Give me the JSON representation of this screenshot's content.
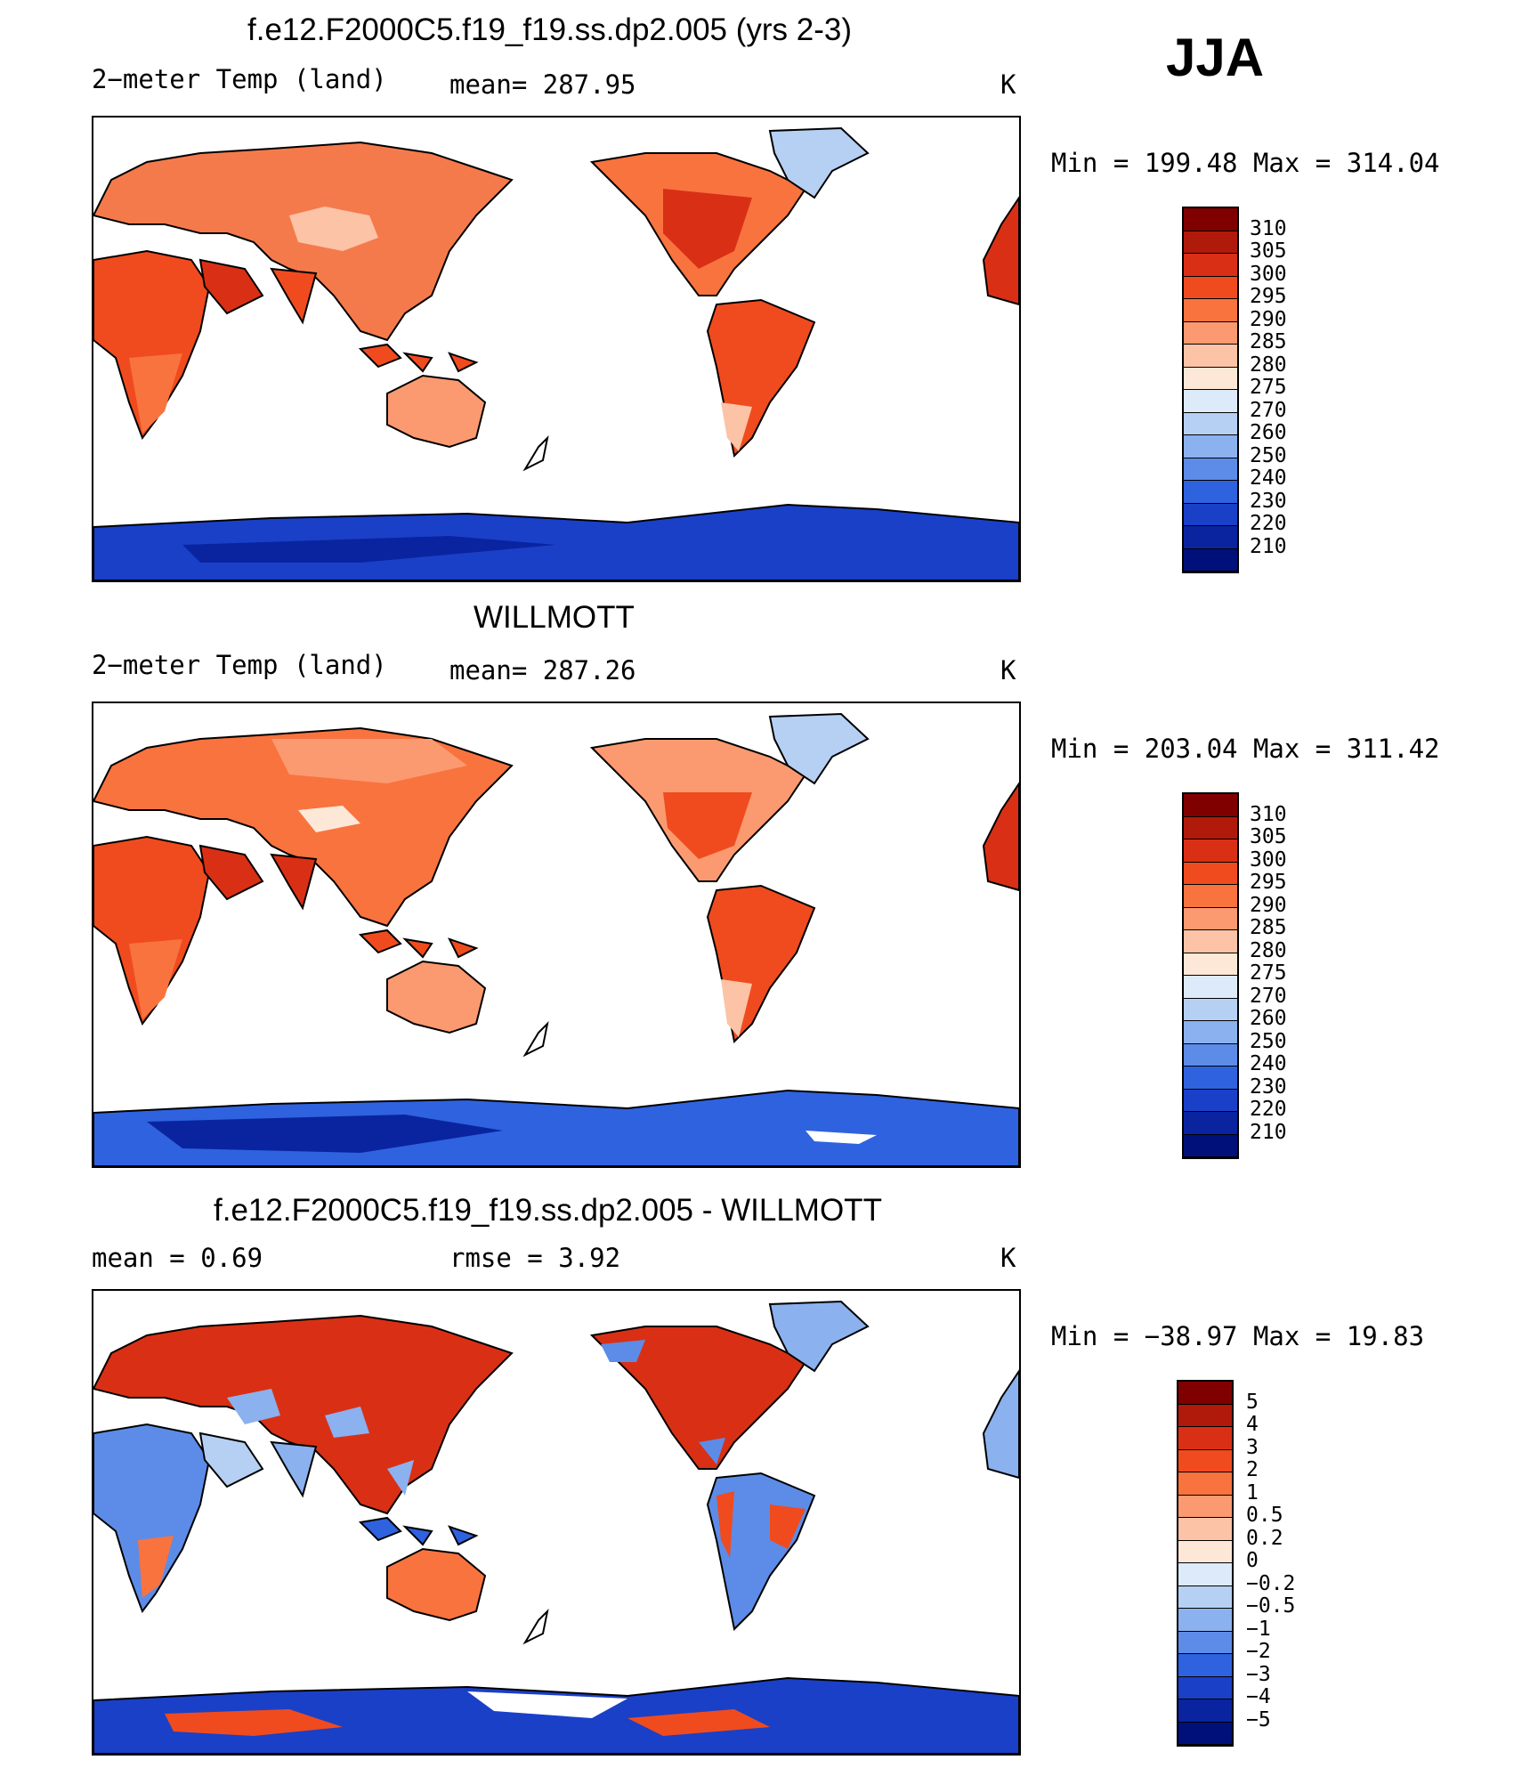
{
  "season": "JJA",
  "panels": [
    {
      "title": "f.e12.F2000C5.f19_f19.ss.dp2.005 (yrs 2-3)",
      "left_label": "2−meter Temp (land)",
      "mid_label": "mean=  287.95",
      "units": "K",
      "stats": "Min  =  199.48  Max  =  314.04",
      "colorbar": {
        "labels": [
          "310",
          "305",
          "300",
          "295",
          "290",
          "285",
          "280",
          "275",
          "270",
          "260",
          "250",
          "240",
          "230",
          "220",
          "210"
        ],
        "colors": [
          "#800000",
          "#b01a0a",
          "#d93015",
          "#f04b1e",
          "#f9733f",
          "#fb9a70",
          "#fcc3a6",
          "#fde8d8",
          "#dceaf9",
          "#b6d0f4",
          "#8bb1ef",
          "#5c8ce8",
          "#2f62df",
          "#1a40c8",
          "#0a24a0",
          "#00107a"
        ]
      }
    },
    {
      "title": "WILLMOTT",
      "left_label": "2−meter Temp (land)",
      "mid_label": "mean=  287.26",
      "units": "K",
      "stats": "Min  =  203.04  Max  =  311.42",
      "colorbar": {
        "labels": [
          "310",
          "305",
          "300",
          "295",
          "290",
          "285",
          "280",
          "275",
          "270",
          "260",
          "250",
          "240",
          "230",
          "220",
          "210"
        ],
        "colors": [
          "#800000",
          "#b01a0a",
          "#d93015",
          "#f04b1e",
          "#f9733f",
          "#fb9a70",
          "#fcc3a6",
          "#fde8d8",
          "#dceaf9",
          "#b6d0f4",
          "#8bb1ef",
          "#5c8ce8",
          "#2f62df",
          "#1a40c8",
          "#0a24a0",
          "#00107a"
        ]
      }
    },
    {
      "title": "f.e12.F2000C5.f19_f19.ss.dp2.005 - WILLMOTT",
      "left_label": "mean =     0.69",
      "mid_label": "rmse =     3.92",
      "units": "K",
      "stats": "Min  =  −38.97  Max  =     19.83",
      "colorbar": {
        "labels": [
          "5",
          "4",
          "3",
          "2",
          "1",
          "0.5",
          "0.2",
          "0",
          "−0.2",
          "−0.5",
          "−1",
          "−2",
          "−3",
          "−4",
          "−5"
        ],
        "colors": [
          "#800000",
          "#b01a0a",
          "#d93015",
          "#f04b1e",
          "#f9733f",
          "#fb9a70",
          "#fcc3a6",
          "#fde8d8",
          "#dceaf9",
          "#b6d0f4",
          "#8bb1ef",
          "#5c8ce8",
          "#2f62df",
          "#1a40c8",
          "#0a24a0",
          "#00107a"
        ]
      }
    }
  ]
}
